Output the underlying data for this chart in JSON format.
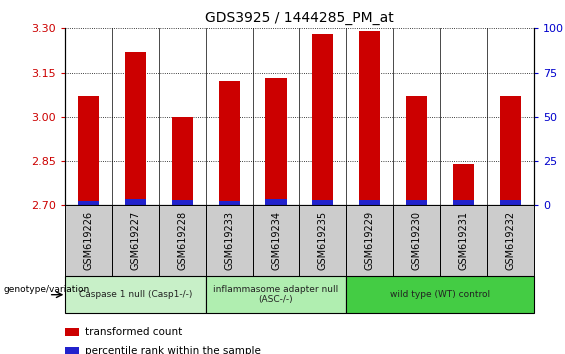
{
  "title": "GDS3925 / 1444285_PM_at",
  "samples": [
    "GSM619226",
    "GSM619227",
    "GSM619228",
    "GSM619233",
    "GSM619234",
    "GSM619235",
    "GSM619229",
    "GSM619230",
    "GSM619231",
    "GSM619232"
  ],
  "transformed_count": [
    3.07,
    3.22,
    3.0,
    3.12,
    3.13,
    3.28,
    3.29,
    3.07,
    2.84,
    3.07
  ],
  "blue_top": [
    2.715,
    2.722,
    2.718,
    2.715,
    2.722,
    2.718,
    2.718,
    2.718,
    2.718,
    2.718
  ],
  "bar_bottom": 2.7,
  "ylim_left": [
    2.7,
    3.3
  ],
  "ylim_right": [
    0,
    100
  ],
  "yticks_left": [
    2.7,
    2.85,
    3.0,
    3.15,
    3.3
  ],
  "yticks_right": [
    0,
    25,
    50,
    75,
    100
  ],
  "groups": [
    {
      "label": "Caspase 1 null (Casp1-/-)",
      "start": 0,
      "end": 3,
      "color": "#c8f0c8"
    },
    {
      "label": "inflammasome adapter null\n(ASC-/-)",
      "start": 3,
      "end": 6,
      "color": "#b0eeb0"
    },
    {
      "label": "wild type (WT) control",
      "start": 6,
      "end": 10,
      "color": "#44cc44"
    }
  ],
  "bar_color": "#cc0000",
  "blue_color": "#2222cc",
  "tick_color_left": "#cc0000",
  "tick_color_right": "#0000cc",
  "bar_width": 0.45,
  "legend_red": "transformed count",
  "legend_blue": "percentile rank within the sample",
  "genotype_label": "genotype/variation",
  "sample_box_color": "#cccccc",
  "fig_width": 5.65,
  "fig_height": 3.54,
  "dpi": 100
}
